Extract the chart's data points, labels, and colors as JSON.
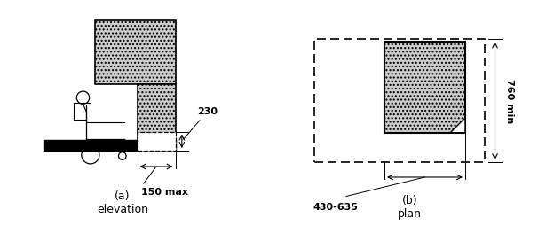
{
  "fig_width": 6.24,
  "fig_height": 2.72,
  "bg_color": "#ffffff",
  "hatch_fc": "#cccccc",
  "label_a": "(a)\nelevation",
  "label_b": "(b)\nplan",
  "dim_230": "230",
  "dim_150": "150 max",
  "dim_760": "760 min",
  "dim_430": "430-635"
}
